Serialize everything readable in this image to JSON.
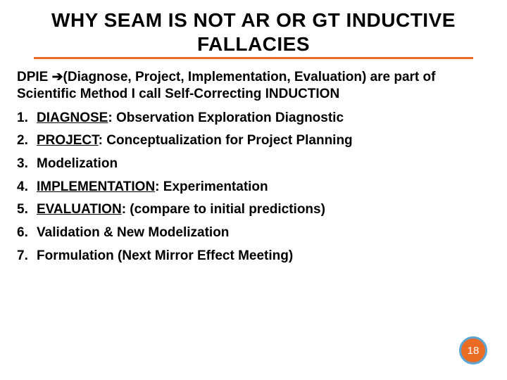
{
  "title": {
    "line1": "WHY SEAM IS NOT AR OR GT INDUCTIVE",
    "line2": "FALLACIES",
    "fontsize": 28,
    "color": "#000000",
    "underline_color": "#ea6b24"
  },
  "intro": {
    "prefix": "DPIE ",
    "arrow": "➔",
    "rest": "(Diagnose, Project, Implementation, Evaluation) are part of Scientific Method I call Self-Correcting INDUCTION",
    "fontsize": 19,
    "fontweight": "bold",
    "color": "#000000"
  },
  "list": {
    "fontsize": 19,
    "fontweight": "bold",
    "color": "#000000",
    "items": [
      {
        "num": "1.",
        "underlined": "DIAGNOSE",
        "rest": ": Observation Exploration Diagnostic"
      },
      {
        "num": "2.",
        "underlined": "PROJECT",
        "rest": ": Conceptualization for Project  Planning"
      },
      {
        "num": "3.",
        "underlined": "",
        "rest": "Modelization"
      },
      {
        "num": "4.",
        "underlined": "IMPLEMENTATION",
        "rest": ": Experimentation"
      },
      {
        "num": "5.",
        "underlined": "EVALUATION",
        "rest": ": (compare to initial predictions)"
      },
      {
        "num": "6.",
        "underlined": "",
        "rest": "Validation & New Modelization"
      },
      {
        "num": "7.",
        "underlined": "",
        "rest": "Formulation (Next Mirror Effect Meeting)"
      }
    ]
  },
  "page_badge": {
    "number": "18",
    "bg_color": "#ea6b24",
    "border_color": "#5aa7d6",
    "text_color": "#ffffff"
  },
  "background_color": "#ffffff"
}
